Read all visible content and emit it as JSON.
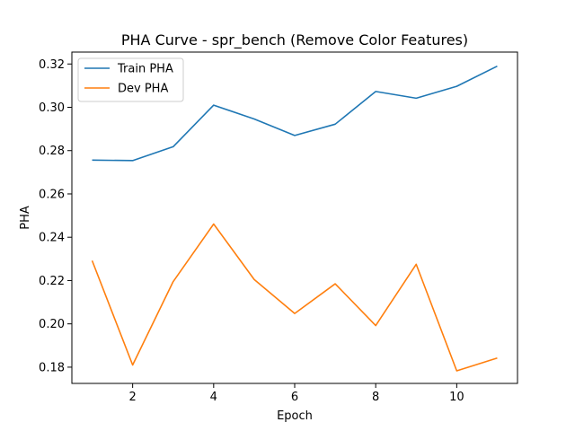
{
  "chart_data": {
    "type": "line",
    "title": "PHA Curve - spr_bench (Remove Color Features)",
    "xlabel": "Epoch",
    "ylabel": "PHA",
    "x": [
      1,
      2,
      3,
      4,
      5,
      6,
      7,
      8,
      9,
      10,
      11
    ],
    "xlim": [
      0.5,
      11.5
    ],
    "ylim": [
      0.1725,
      0.3255
    ],
    "xticks": [
      2,
      4,
      6,
      8,
      10
    ],
    "yticks": [
      0.18,
      0.2,
      0.22,
      0.24,
      0.26,
      0.28,
      0.3,
      0.32
    ],
    "ytick_labels": [
      "0.18",
      "0.20",
      "0.22",
      "0.24",
      "0.26",
      "0.28",
      "0.30",
      "0.32"
    ],
    "grid": false,
    "legend_position": "top-left",
    "series": [
      {
        "name": "Train PHA",
        "color": "#1f77b4",
        "values": [
          0.2756,
          0.2754,
          0.2818,
          0.301,
          0.2946,
          0.287,
          0.2922,
          0.3073,
          0.3042,
          0.3097,
          0.319
        ]
      },
      {
        "name": "Dev PHA",
        "color": "#ff7f0e",
        "values": [
          0.2292,
          0.181,
          0.2195,
          0.2461,
          0.2205,
          0.2048,
          0.2185,
          0.1992,
          0.2275,
          0.1783,
          0.1842
        ]
      }
    ]
  }
}
